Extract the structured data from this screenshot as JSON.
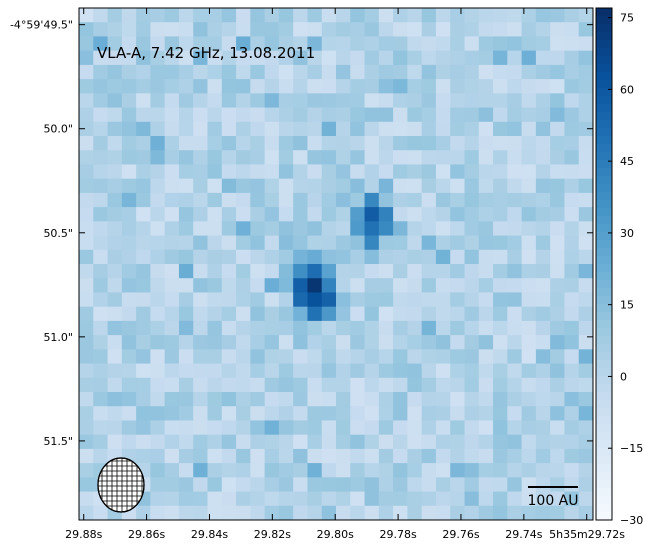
{
  "chart_data": {
    "type": "heatmap",
    "title": "",
    "xlabel": "",
    "ylabel": "",
    "annotation": "VLA-A, 7.42 GHz, 13.08.2011",
    "scale_bar_label": "100 AU",
    "x_tick_labels": [
      "29.88s",
      "29.86s",
      "29.84s",
      "29.82s",
      "29.80s",
      "29.78s",
      "29.76s",
      "29.74s",
      "5h35m29.72s"
    ],
    "y_tick_labels": [
      "-4°59'49.5\"",
      "50.0\"",
      "50.5\"",
      "51.0\"",
      "51.5\""
    ],
    "colorbar": {
      "min": -30,
      "max": 77,
      "ticks": [
        75,
        60,
        45,
        30,
        15,
        0,
        -15,
        -30
      ],
      "tick_labels": [
        "75",
        "60",
        "45",
        "30",
        "15",
        "0",
        "−15",
        "−30"
      ],
      "colormap": "Blues",
      "color_low": "#f7fbff",
      "color_high": "#08306b"
    },
    "colors": {
      "frame": "#000000",
      "beam_outline": "#000000"
    },
    "grid": false,
    "sources": [
      {
        "ra_s": 29.807,
        "dec_arcsec": 50.78,
        "peak": 76
      },
      {
        "ra_s": 29.788,
        "dec_arcsec": 50.44,
        "peak": 55
      }
    ]
  }
}
